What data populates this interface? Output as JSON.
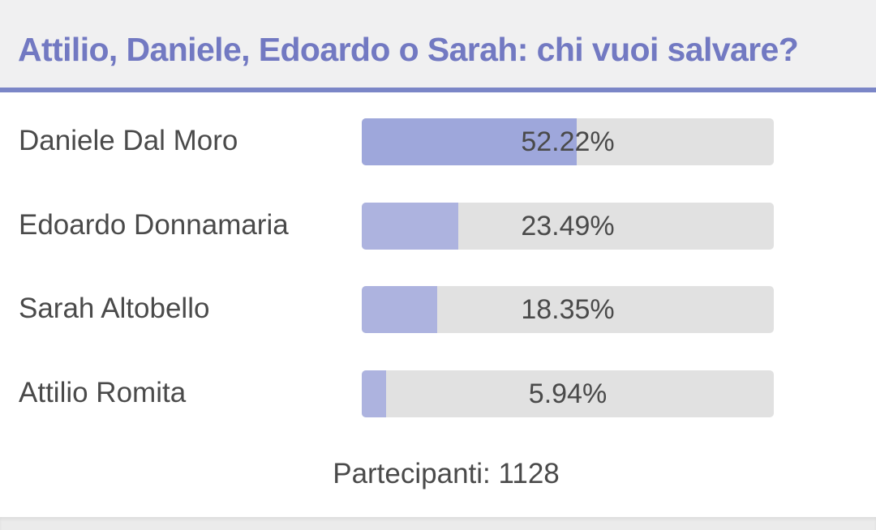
{
  "poll": {
    "title": "Attilio, Daniele, Edoardo o Sarah: chi vuoi salvare?",
    "options": [
      {
        "name": "Daniele Dal Moro",
        "percent_label": "52.22%",
        "percent": 52.22
      },
      {
        "name": "Edoardo Donnamaria",
        "percent_label": "23.49%",
        "percent": 23.49
      },
      {
        "name": "Sarah Altobello",
        "percent_label": "18.35%",
        "percent": 18.35
      },
      {
        "name": "Attilio Romita",
        "percent_label": "5.94%",
        "percent": 5.94
      }
    ],
    "participants_label": "Partecipanti: 1128"
  },
  "colors": {
    "accent": "#7279c2",
    "header_rule": "#7b86c7",
    "bar_fill_leader": "#9ea7db",
    "bar_fill": "#adb3df",
    "bar_track": "#e1e1e1",
    "text": "#4a4a4a"
  }
}
